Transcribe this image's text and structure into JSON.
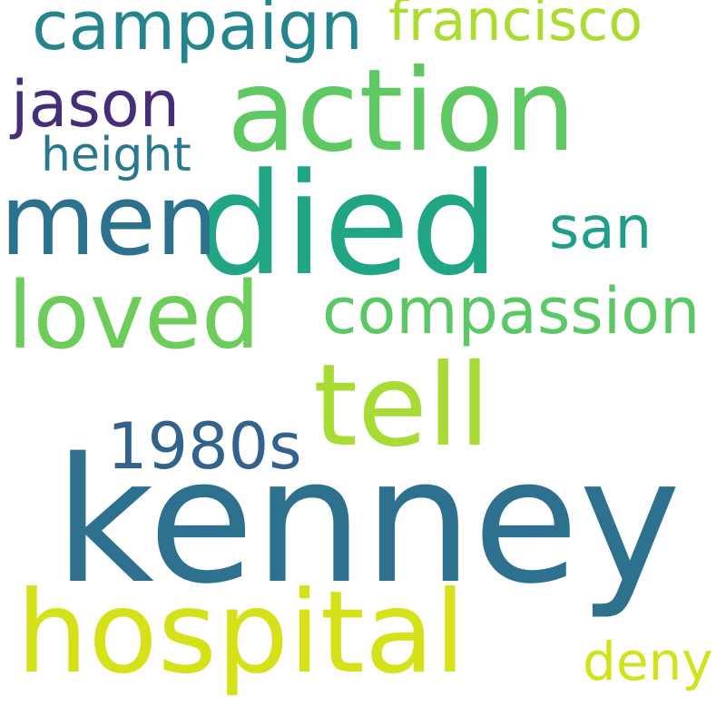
{
  "words": [
    {
      "id": "kenney",
      "text": "kenney",
      "color": "#2d718e"
    },
    {
      "id": "died",
      "text": "died",
      "color": "#21a685"
    },
    {
      "id": "action",
      "text": "action",
      "color": "#5ec962"
    },
    {
      "id": "hospital",
      "text": "hospital",
      "color": "#d5e21a"
    },
    {
      "id": "tell",
      "text": "tell",
      "color": "#a8db34"
    },
    {
      "id": "men",
      "text": "men",
      "color": "#2c728e"
    },
    {
      "id": "loved",
      "text": "loved",
      "color": "#6ccd5a"
    },
    {
      "id": "campaign",
      "text": "campaign",
      "color": "#25858e"
    },
    {
      "id": "compassion",
      "text": "compassion",
      "color": "#5ac864"
    },
    {
      "id": "jason",
      "text": "jason",
      "color": "#472c7a"
    },
    {
      "id": "francisco",
      "text": "francisco",
      "color": "#addc30"
    },
    {
      "id": "1980s",
      "text": "1980s",
      "color": "#33638d"
    },
    {
      "id": "san",
      "text": "san",
      "color": "#1f9e89"
    },
    {
      "id": "height",
      "text": "height",
      "color": "#2a788e"
    },
    {
      "id": "deny",
      "text": "deny",
      "color": "#d2e21b"
    }
  ]
}
